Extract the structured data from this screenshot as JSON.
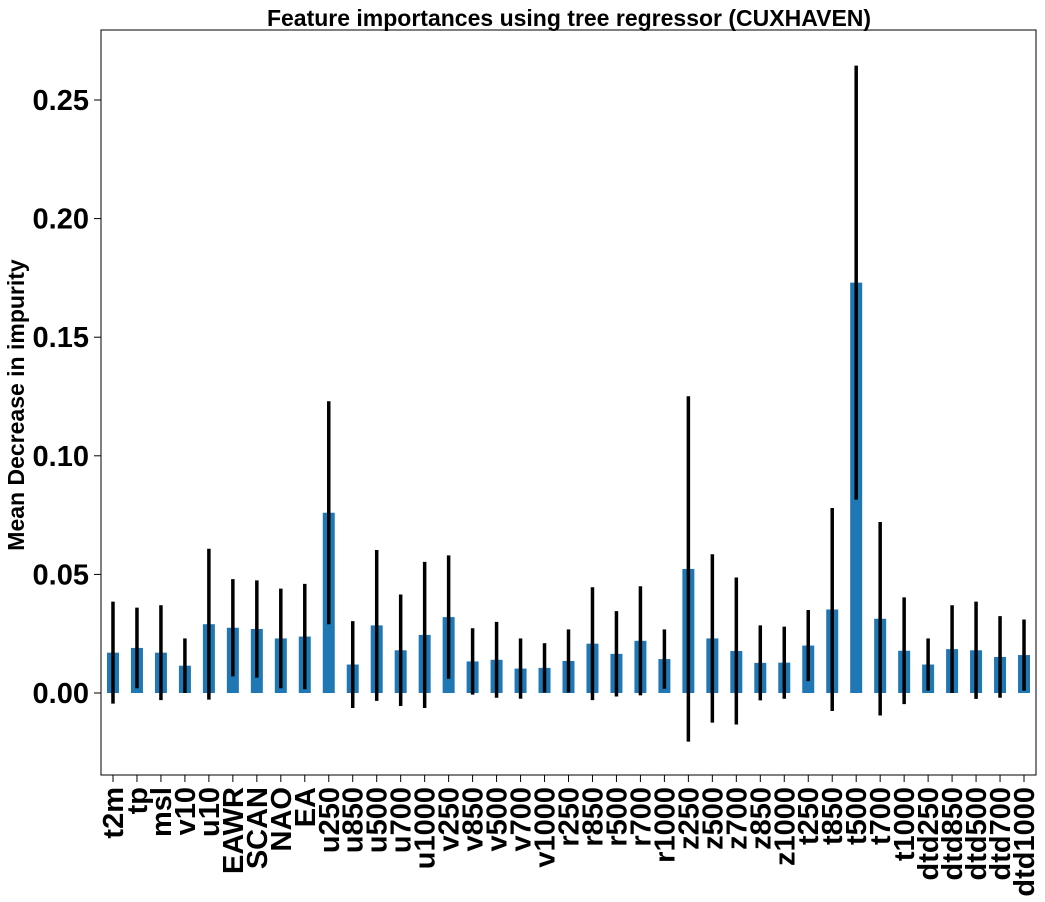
{
  "chart_data": {
    "type": "bar",
    "title": "Feature importances using tree regressor (CUXHAVEN)",
    "xlabel": "",
    "ylabel": "Mean Decrease in impurity",
    "ylim": [
      -0.035,
      0.278
    ],
    "yticks": [
      0.0,
      0.05,
      0.1,
      0.15,
      0.2,
      0.25
    ],
    "ytick_labels": [
      "0.00",
      "0.05",
      "0.10",
      "0.15",
      "0.20",
      "0.25"
    ],
    "grid": false,
    "bar_color": "#1f77b4",
    "error_bar_color": "#000000",
    "categories": [
      "t2m",
      "tp",
      "msl",
      "v10",
      "u10",
      "EAWR",
      "SCAN",
      "NAO",
      "EA",
      "u250",
      "u850",
      "u500",
      "u700",
      "u1000",
      "v250",
      "v850",
      "v500",
      "v700",
      "v1000",
      "r250",
      "r850",
      "r500",
      "r700",
      "r1000",
      "z250",
      "z500",
      "z700",
      "z850",
      "z1000",
      "t250",
      "t850",
      "t500",
      "t700",
      "t1000",
      "dtd250",
      "dtd850",
      "dtd500",
      "dtd700",
      "dtd1000"
    ],
    "values": [
      0.017,
      0.019,
      0.017,
      0.0115,
      0.029,
      0.0275,
      0.027,
      0.023,
      0.0238,
      0.076,
      0.012,
      0.0285,
      0.018,
      0.0245,
      0.032,
      0.0133,
      0.014,
      0.0103,
      0.0106,
      0.0135,
      0.0208,
      0.0165,
      0.022,
      0.0143,
      0.0523,
      0.023,
      0.0177,
      0.0127,
      0.0128,
      0.02,
      0.0352,
      0.173,
      0.0313,
      0.0178,
      0.012,
      0.0185,
      0.018,
      0.0152,
      0.016
    ],
    "errors": [
      0.0215,
      0.017,
      0.02,
      0.0115,
      0.0318,
      0.0205,
      0.0205,
      0.021,
      0.0222,
      0.047,
      0.0183,
      0.0318,
      0.0235,
      0.0308,
      0.026,
      0.014,
      0.016,
      0.0127,
      0.0104,
      0.0133,
      0.0238,
      0.018,
      0.023,
      0.0125,
      0.0728,
      0.0355,
      0.031,
      0.0158,
      0.0152,
      0.015,
      0.0428,
      0.0915,
      0.0408,
      0.0225,
      0.011,
      0.0185,
      0.0205,
      0.0172,
      0.015
    ]
  }
}
